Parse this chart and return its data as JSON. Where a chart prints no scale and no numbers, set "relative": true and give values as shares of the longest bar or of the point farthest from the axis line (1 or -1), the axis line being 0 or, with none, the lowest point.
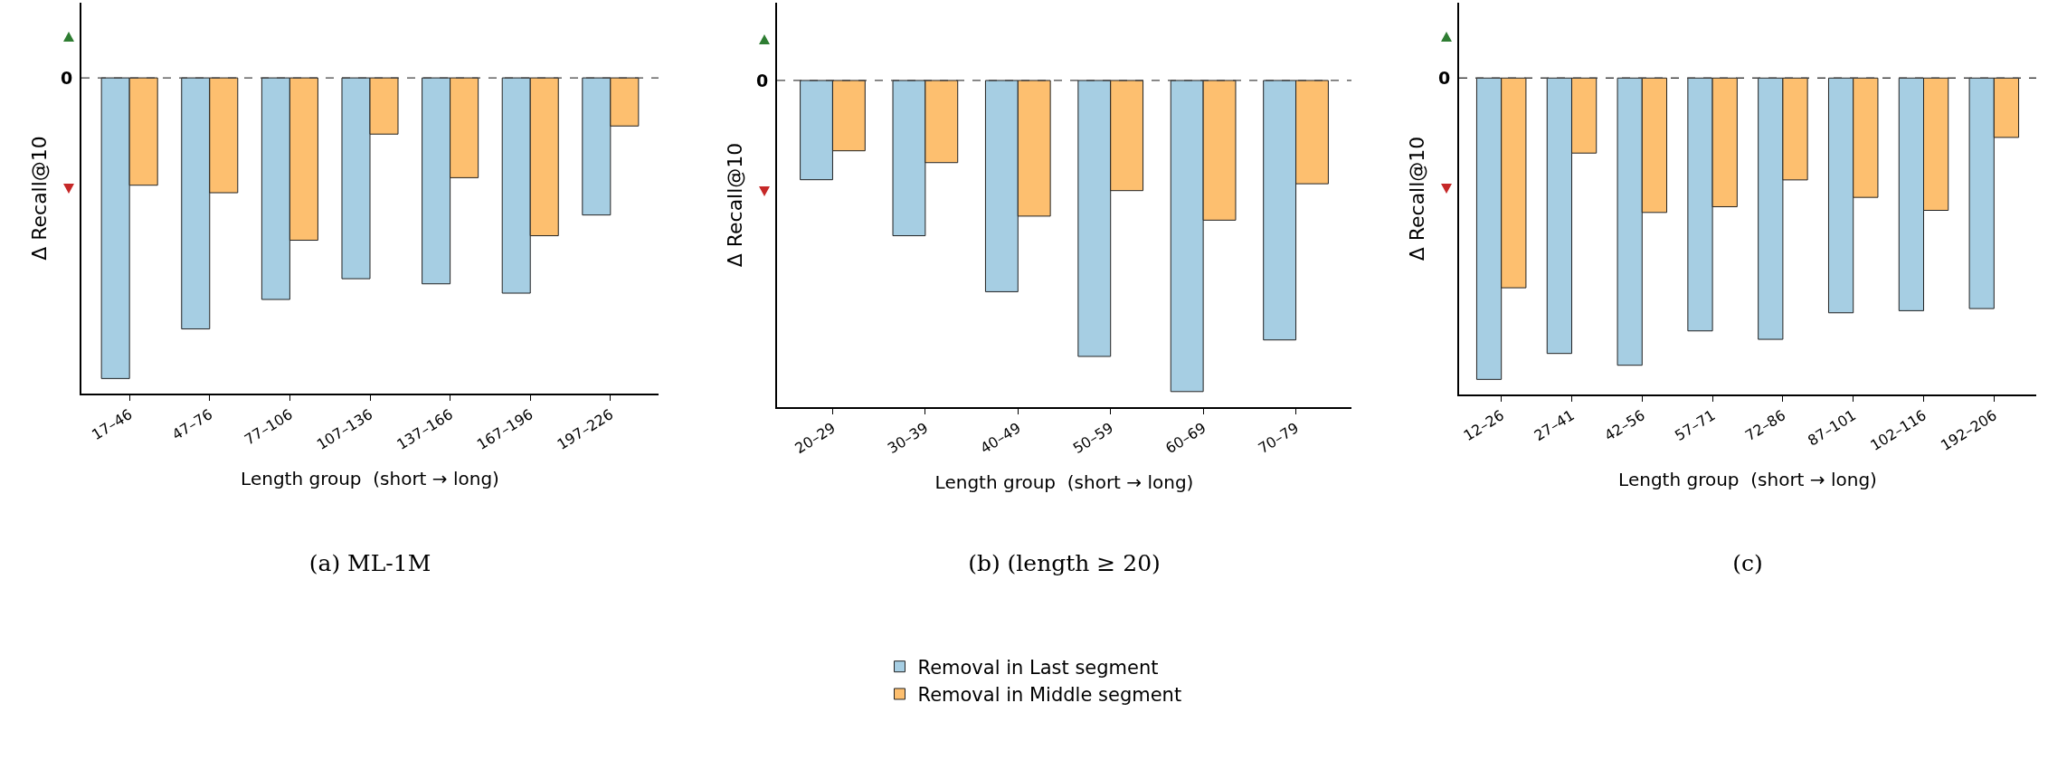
{
  "chart_data": [
    {
      "type": "bar",
      "title": "(a) ML-1M",
      "xlabel": "Length group  (short → long)",
      "ylabel": "Δ Recall@10",
      "relative": true,
      "legend": false,
      "categories": [
        "17–46",
        "47–76",
        "77–106",
        "107–136",
        "137–166",
        "167–196",
        "197–226"
      ],
      "series": [
        {
          "color": "#a6cee3",
          "values": [
            -1,
            -0.835,
            -0.737,
            -0.668,
            -0.685,
            -0.716,
            -0.456
          ]
        },
        {
          "color": "#fdbf6f",
          "values": [
            -0.357,
            -0.382,
            -0.54,
            -0.187,
            -0.332,
            -0.525,
            -0.16
          ]
        }
      ],
      "ref_lines": [
        {
          "axis": "y",
          "value": 0,
          "label": "0",
          "line_style": "dashed",
          "color": "#444444"
        }
      ]
    },
    {
      "type": "bar",
      "title": "(b) (length ≥ 20)",
      "xlabel": "Length group  (short → long)",
      "ylabel": "Δ Recall@10",
      "relative": true,
      "legend": "bottom",
      "categories": [
        "20–29",
        "30–39",
        "40–49",
        "50–59",
        "60–69",
        "70–79"
      ],
      "series": [
        {
          "name": "Removal in Last segment",
          "color": "#a6cee3",
          "values": [
            -0.319,
            -0.499,
            -0.679,
            -0.887,
            -1,
            -0.834
          ]
        },
        {
          "name": "Removal in Middle segment",
          "color": "#fdbf6f",
          "values": [
            -0.226,
            -0.264,
            -0.436,
            -0.354,
            -0.449,
            -0.332
          ]
        }
      ],
      "ref_lines": [
        {
          "axis": "y",
          "value": 0,
          "label": "0",
          "line_style": "dashed",
          "color": "#444444"
        }
      ]
    },
    {
      "type": "bar",
      "title": "(c)",
      "xlabel": "Length group  (short → long)",
      "ylabel": "Δ Recall@10",
      "relative": true,
      "legend": false,
      "categories": [
        "12–26",
        "27–41",
        "42–56",
        "57–71",
        "72–86",
        "87–101",
        "102–116",
        "192–206"
      ],
      "series": [
        {
          "color": "#a6cee3",
          "values": [
            -1,
            -0.914,
            -0.953,
            -0.839,
            -0.867,
            -0.779,
            -0.772,
            -0.765
          ]
        },
        {
          "color": "#fdbf6f",
          "values": [
            -0.696,
            -0.249,
            -0.446,
            -0.427,
            -0.338,
            -0.396,
            -0.439,
            -0.197
          ]
        }
      ],
      "ref_lines": [
        {
          "axis": "y",
          "value": 0,
          "label": "0",
          "line_style": "dashed",
          "color": "#444444"
        }
      ]
    }
  ]
}
